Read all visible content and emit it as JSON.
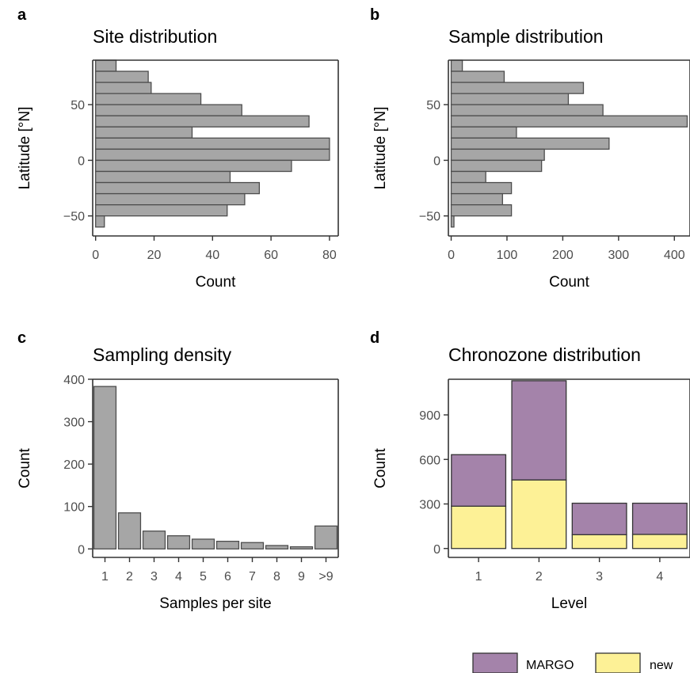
{
  "chart_data": [
    {
      "panel": "a",
      "type": "bar",
      "orientation": "horizontal",
      "title": "Site distribution",
      "xlabel": "Count",
      "ylabel": "Latitude [°N]",
      "bin_width": 10,
      "bin_starts": [
        80,
        70,
        60,
        50,
        40,
        30,
        20,
        10,
        0,
        -10,
        -20,
        -30,
        -40,
        -50,
        -60
      ],
      "values": [
        7,
        18,
        19,
        36,
        50,
        73,
        33,
        80,
        80,
        67,
        46,
        56,
        51,
        45,
        3
      ],
      "xlim": [
        -1,
        83
      ],
      "ylim": [
        -68,
        90
      ],
      "xticks": [
        0,
        20,
        40,
        60,
        80
      ],
      "yticks": [
        -50,
        0,
        50
      ],
      "ytick_labels": [
        "−50",
        "0",
        "50"
      ]
    },
    {
      "panel": "b",
      "type": "bar",
      "orientation": "horizontal",
      "title": "Sample distribution",
      "xlabel": "Count",
      "ylabel": "Latitude [°N]",
      "bin_width": 10,
      "bin_starts": [
        80,
        70,
        60,
        50,
        40,
        30,
        20,
        10,
        0,
        -10,
        -20,
        -30,
        -40,
        -50,
        -60
      ],
      "values": [
        20,
        95,
        237,
        210,
        272,
        423,
        117,
        283,
        167,
        162,
        62,
        108,
        92,
        108,
        5
      ],
      "xlim": [
        -5,
        428
      ],
      "ylim": [
        -68,
        90
      ],
      "xticks": [
        0,
        100,
        200,
        300,
        400
      ],
      "yticks": [
        -50,
        0,
        50
      ],
      "ytick_labels": [
        "−50",
        "0",
        "50"
      ]
    },
    {
      "panel": "c",
      "type": "bar",
      "title": "Sampling density",
      "xlabel": "Samples per site",
      "ylabel": "Count",
      "categories": [
        "1",
        "2",
        "3",
        "4",
        "5",
        "6",
        "7",
        "8",
        "9",
        ">9"
      ],
      "values": [
        383,
        85,
        42,
        31,
        23,
        18,
        15,
        8,
        5,
        54
      ],
      "ylim": [
        -20,
        400
      ],
      "yticks": [
        0,
        100,
        200,
        300,
        400
      ]
    },
    {
      "panel": "d",
      "type": "bar",
      "stacked": true,
      "title": "Chronozone distribution",
      "xlabel": "Level",
      "ylabel": "Count",
      "categories": [
        "1",
        "2",
        "3",
        "4"
      ],
      "series": [
        {
          "name": "new",
          "values": [
            285,
            462,
            93,
            95
          ],
          "color": "#fdf196"
        },
        {
          "name": "MARGO",
          "values": [
            347,
            668,
            212,
            210
          ],
          "color": "#a483aa"
        }
      ],
      "ylim": [
        -60,
        1140
      ],
      "yticks": [
        0,
        300,
        600,
        900
      ],
      "legend": {
        "placement": "bottom-right",
        "order": [
          "MARGO",
          "new"
        ]
      }
    }
  ],
  "colors": {
    "bar_fill": "#a6a6a6",
    "bar_edge": "#4d4d4d",
    "axis": "#333333",
    "tick_text": "#4d4d4d"
  }
}
